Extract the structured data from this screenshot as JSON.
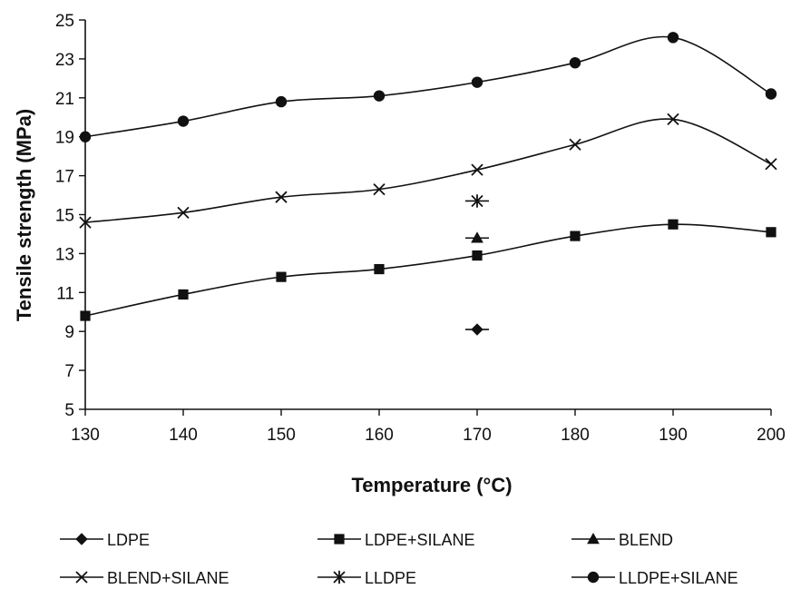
{
  "chart_data": {
    "type": "line",
    "xlabel": "Temperature (°C)",
    "ylabel": "Tensile strength (MPa)",
    "xlim": [
      130,
      200
    ],
    "ylim": [
      5,
      25
    ],
    "xticks": [
      130,
      140,
      150,
      160,
      170,
      180,
      190,
      200
    ],
    "yticks": [
      5,
      7,
      9,
      11,
      13,
      15,
      17,
      19,
      21,
      23,
      25
    ],
    "grid": false,
    "legend_position": "bottom",
    "series": [
      {
        "name": "LDPE",
        "marker": "diamond",
        "x": [
          170
        ],
        "y": [
          9.1
        ]
      },
      {
        "name": "LDPE+SILANE",
        "marker": "square",
        "x": [
          130,
          140,
          150,
          160,
          170,
          180,
          190,
          200
        ],
        "y": [
          9.8,
          10.9,
          11.8,
          12.2,
          12.9,
          13.9,
          14.5,
          14.1
        ]
      },
      {
        "name": "BLEND",
        "marker": "triangle",
        "x": [
          170
        ],
        "y": [
          13.8
        ]
      },
      {
        "name": "BLEND+SILANE",
        "marker": "x",
        "x": [
          130,
          140,
          150,
          160,
          170,
          180,
          190,
          200
        ],
        "y": [
          14.6,
          15.1,
          15.9,
          16.3,
          17.3,
          18.6,
          19.9,
          17.6
        ]
      },
      {
        "name": "LLDPE",
        "marker": "star",
        "x": [
          170
        ],
        "y": [
          15.7
        ]
      },
      {
        "name": "LLDPE+SILANE",
        "marker": "circle",
        "x": [
          130,
          140,
          150,
          160,
          170,
          180,
          190,
          200
        ],
        "y": [
          19.0,
          19.8,
          20.8,
          21.1,
          21.8,
          22.8,
          24.1,
          21.2
        ]
      }
    ]
  }
}
